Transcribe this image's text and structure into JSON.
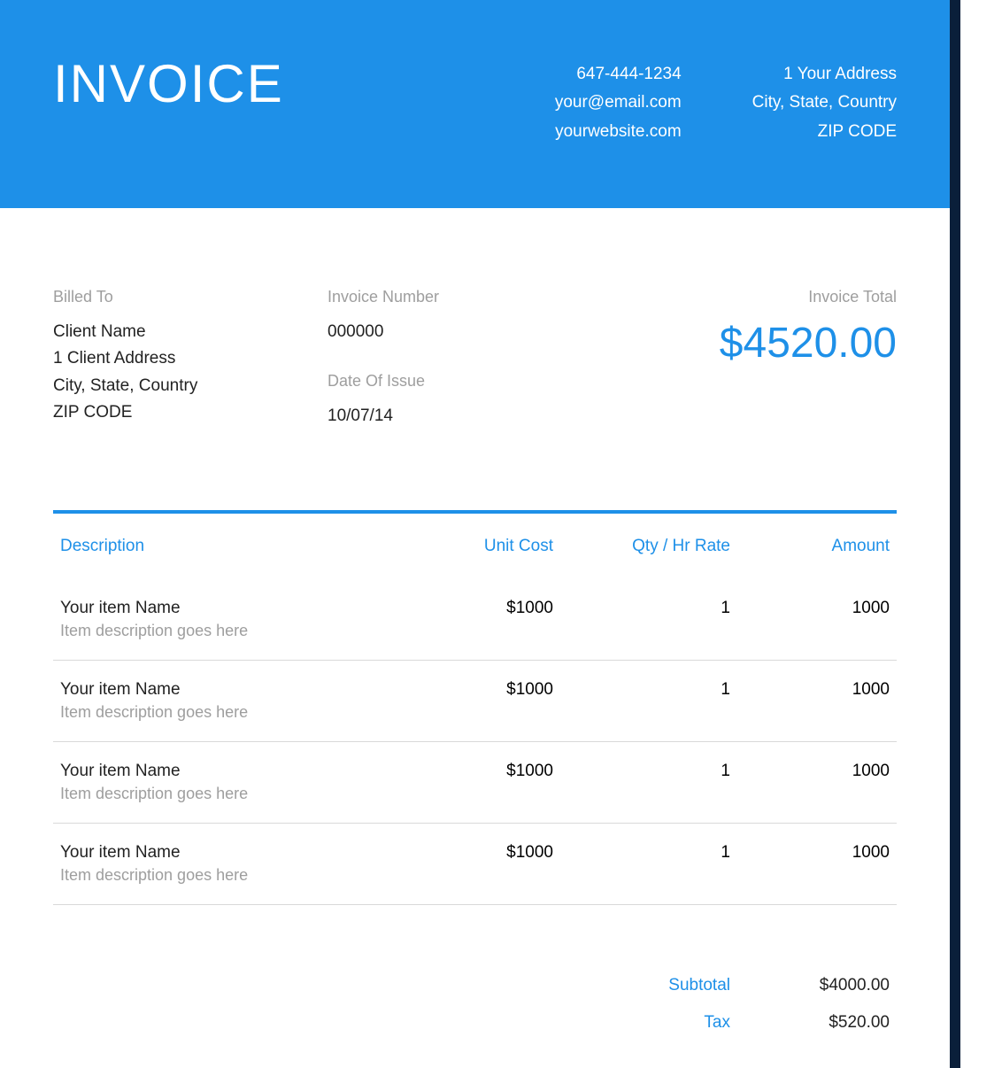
{
  "colors": {
    "header_bg": "#1e90e8",
    "accent": "#1e90e8",
    "muted": "#9e9e9e",
    "text": "#222222",
    "border_dark": "#0a1f3a",
    "row_border": "#d9d9d9"
  },
  "header": {
    "title": "INVOICE",
    "contact": {
      "phone": "647-444-1234",
      "email": "your@email.com",
      "website": "yourwebsite.com"
    },
    "address": {
      "line1": "1 Your Address",
      "line2": "City, State, Country",
      "zip": "ZIP CODE"
    }
  },
  "meta": {
    "billed_to_label": "Billed To",
    "billed_to": {
      "name": "Client Name",
      "address": "1 Client Address",
      "city": "City, State, Country",
      "zip": "ZIP CODE"
    },
    "invoice_number_label": "Invoice Number",
    "invoice_number": "000000",
    "date_label": "Date Of Issue",
    "date": "10/07/14",
    "total_label": "Invoice Total",
    "total": "$4520.00"
  },
  "items": {
    "columns": {
      "description": "Description",
      "unit_cost": "Unit Cost",
      "qty": "Qty / Hr Rate",
      "amount": "Amount"
    },
    "rows": [
      {
        "name": "Your item Name",
        "desc": "Item description goes here",
        "unit_cost": "$1000",
        "qty": "1",
        "amount": "1000"
      },
      {
        "name": "Your item Name",
        "desc": "Item description goes here",
        "unit_cost": "$1000",
        "qty": "1",
        "amount": "1000"
      },
      {
        "name": "Your item Name",
        "desc": "Item description goes here",
        "unit_cost": "$1000",
        "qty": "1",
        "amount": "1000"
      },
      {
        "name": "Your item Name",
        "desc": "Item description goes here",
        "unit_cost": "$1000",
        "qty": "1",
        "amount": "1000"
      }
    ]
  },
  "totals": {
    "subtotal_label": "Subtotal",
    "subtotal": "$4000.00",
    "tax_label": "Tax",
    "tax": "$520.00"
  }
}
